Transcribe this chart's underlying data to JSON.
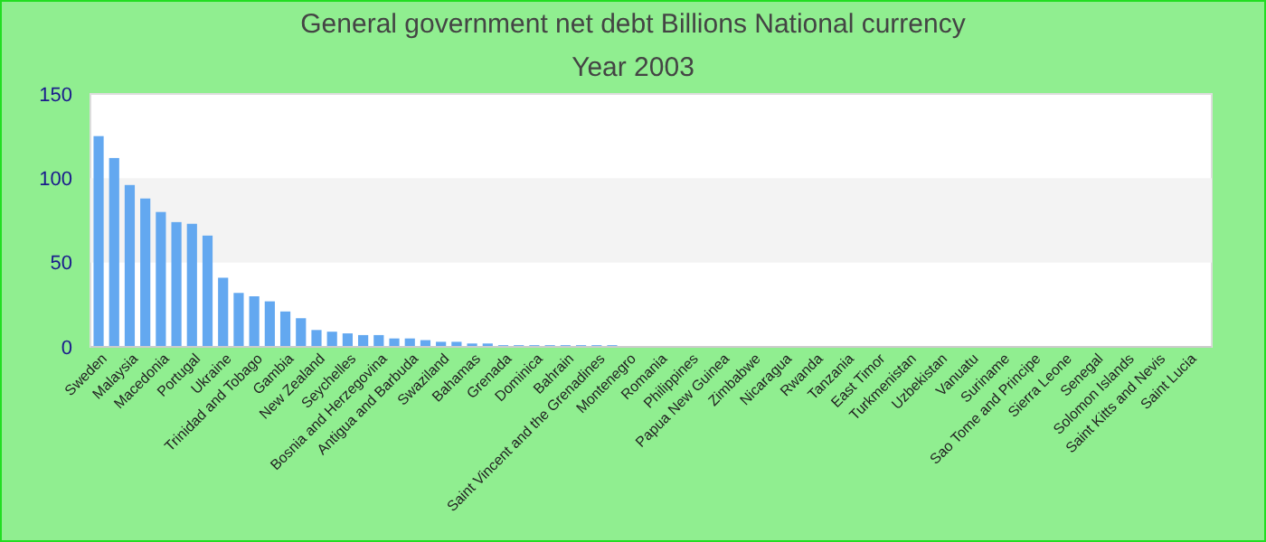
{
  "chart_data": {
    "type": "bar",
    "title": "General government net debt Billions National currency",
    "subtitle": "Year 2003",
    "categories": [
      "Sweden",
      null,
      "Malaysia",
      null,
      "Macedonia",
      null,
      "Portugal",
      null,
      "Ukraine",
      null,
      "Trinidad and Tobago",
      null,
      "Gambia",
      null,
      "New Zealand",
      null,
      "Seychelles",
      null,
      "Bosnia and Herzegovina",
      null,
      "Antigua and Barbuda",
      null,
      "Swaziland",
      null,
      "Bahamas",
      null,
      "Grenada",
      null,
      "Dominica",
      null,
      "Bahrain",
      null,
      "Saint Vincent and the Grenadines",
      null,
      "Montenegro",
      null,
      "Romania",
      null,
      "Philippines",
      null,
      "Papua New Guinea",
      null,
      "Zimbabwe",
      null,
      "Nicaragua",
      null,
      "Rwanda",
      null,
      "Tanzania",
      null,
      "East Timor",
      null,
      "Turkmenistan",
      null,
      "Uzbekistan",
      null,
      "Vanuatu",
      null,
      "Suriname",
      null,
      "Sao Tome and Principe",
      null,
      "Sierra Leone",
      null,
      "Senegal",
      null,
      "Solomon Islands",
      null,
      "Saint Kitts and Nevis",
      null,
      "Saint Lucia",
      null
    ],
    "values": [
      125,
      112,
      96,
      88,
      80,
      74,
      73,
      66,
      41,
      32,
      30,
      27,
      21,
      17,
      10,
      9,
      8,
      7,
      7,
      5,
      5,
      4,
      3,
      3,
      2,
      2,
      1,
      1,
      1,
      1,
      1,
      1,
      1,
      1,
      null,
      null,
      null,
      null,
      null,
      null,
      null,
      null,
      null,
      null,
      null,
      null,
      null,
      null,
      null,
      null,
      null,
      null,
      null,
      null,
      null,
      null,
      null,
      null,
      null,
      null,
      null,
      null,
      null,
      null,
      null,
      null,
      null,
      null,
      null,
      null,
      null,
      null
    ],
    "color": "#63a8f0",
    "ylim": [
      0,
      150
    ],
    "yticks": [
      0,
      50,
      100,
      150
    ],
    "bands": [
      {
        "axis": "y",
        "from": 50,
        "to": 100,
        "color": "#f3f3f3"
      }
    ]
  }
}
